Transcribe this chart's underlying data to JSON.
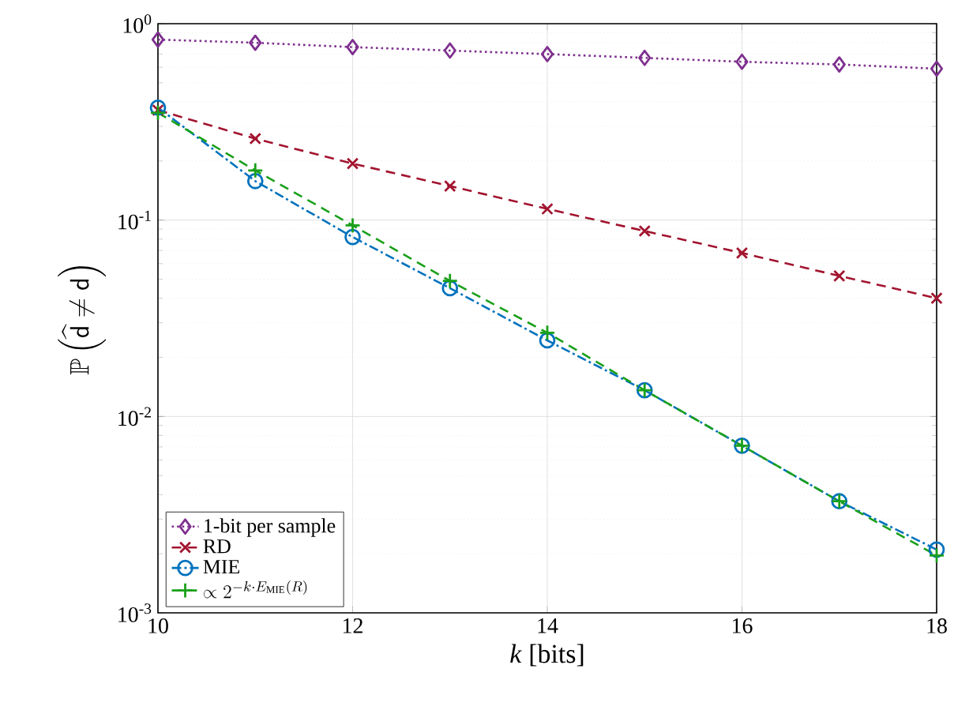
{
  "chart_data": {
    "type": "line",
    "xlabel": "*k* [bits]",
    "ylabel": "\\mathbb{P}\\left(\\widehat{\\mathsf{d}}\\neq\\mathsf{d}\\right)",
    "x": [
      10,
      11,
      12,
      13,
      14,
      15,
      16,
      17,
      18
    ],
    "series": [
      {
        "name": "1-bit per sample",
        "color": "#7e2f8e",
        "marker": "diamond",
        "line_style": "dotted",
        "values": [
          0.83,
          0.8,
          0.76,
          0.73,
          0.7,
          0.67,
          0.64,
          0.62,
          0.59
        ]
      },
      {
        "name": "RD",
        "color": "#a2142f",
        "marker": "cross",
        "line_style": "dashed",
        "values": [
          0.363,
          0.26,
          0.194,
          0.149,
          0.114,
          0.088,
          0.068,
          0.052,
          0.04
        ]
      },
      {
        "name": "MIE",
        "color": "#0072bd",
        "marker": "circle",
        "line_style": "dashdot",
        "values": [
          0.374,
          0.158,
          0.082,
          0.045,
          0.0244,
          0.0136,
          0.0071,
          0.0037,
          0.0021
        ]
      },
      {
        "name": "\\propto 2^{-k\\cdot E_{\\mathrm{MIE}}(R)}",
        "color": "#1aa01a",
        "marker": "plus",
        "line_style": "dashed",
        "values": [
          0.352,
          0.179,
          0.094,
          0.049,
          0.0267,
          0.0136,
          0.0071,
          0.0037,
          0.00196
        ]
      }
    ],
    "xlim": [
      10,
      18
    ],
    "xticks": [
      10,
      12,
      14,
      16,
      18
    ],
    "ylim": [
      0.001,
      1
    ],
    "yticks": [
      {
        "value": 0.001,
        "label": "10$^{-3}$"
      },
      {
        "value": 0.01,
        "label": "10$^{-2}$"
      },
      {
        "value": 0.1,
        "label": "10$^{-1}$"
      },
      {
        "value": 1,
        "label": "10$^{0}$"
      }
    ],
    "log": "y",
    "grid": true,
    "legend": "bottom left"
  }
}
